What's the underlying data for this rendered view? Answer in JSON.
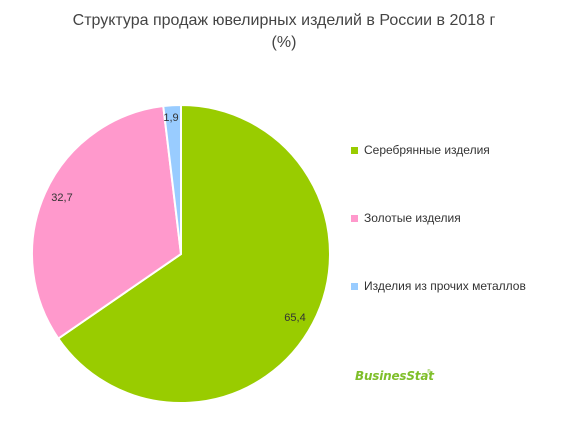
{
  "title_line1": "Структура продаж ювелирных изделий в России в 2018 г",
  "title_line2": "(%)",
  "chart_data": {
    "type": "pie",
    "title": "Структура продаж ювелирных изделий в России в 2018 г (%)",
    "categories": [
      "Серебрянные  изделия",
      "Золотые изделия",
      "Изделия из прочих металлов"
    ],
    "values": [
      65.4,
      32.7,
      1.9
    ],
    "value_labels": [
      "65,4",
      "32,7",
      "1,9"
    ],
    "colors": [
      "#99cc00",
      "#ff99cc",
      "#99ccff"
    ],
    "legend_position": "right"
  },
  "brand": {
    "text": "BusinesStat",
    "reg": "®",
    "color": "#7fbf2a"
  }
}
